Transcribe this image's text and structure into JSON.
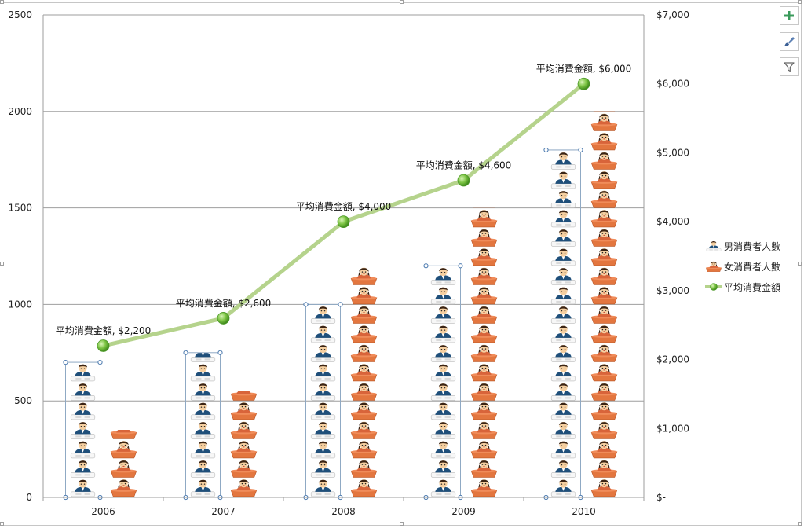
{
  "chart_data": {
    "type": "bar",
    "categories": [
      "2006",
      "2007",
      "2008",
      "2009",
      "2010"
    ],
    "series": [
      {
        "name": "男消費者人數",
        "axis": "left",
        "kind": "pictograph-bar",
        "values": [
          700,
          750,
          1000,
          1200,
          1800
        ]
      },
      {
        "name": "女消費者人數",
        "axis": "left",
        "kind": "pictograph-bar",
        "values": [
          350,
          550,
          1200,
          1500,
          2000
        ]
      },
      {
        "name": "平均消費金額",
        "axis": "right",
        "kind": "line",
        "values": [
          2200,
          2600,
          4000,
          4600,
          6000
        ],
        "data_labels": [
          "平均消費金額, $2,200",
          "平均消費金額, $2,600",
          "平均消費金額, $4,000",
          "平均消費金額, $4,600",
          "平均消費金額, $6,000"
        ]
      }
    ],
    "y_left": {
      "min": 0,
      "max": 2500,
      "ticks": [
        "0",
        "500",
        "1000",
        "1500",
        "2000",
        "2500"
      ]
    },
    "y_right": {
      "min": 0,
      "max": 7000,
      "ticks": [
        "$-",
        "$1,000",
        "$2,000",
        "$3,000",
        "$4,000",
        "$5,000",
        "$6,000",
        "$7,000"
      ]
    },
    "gridlines": true,
    "legend_position": "right",
    "colors": {
      "line": "#b5d38c",
      "marker": "#6fb43a",
      "skin": "#f5cfa0",
      "hair": "#3b2414",
      "shirt_male": "#1f4f7a",
      "shirt_female": "#d8643a",
      "tray": "#e3763f"
    }
  },
  "toolbar": [
    {
      "name": "chart-elements-button",
      "icon": "plus-icon"
    },
    {
      "name": "chart-styles-button",
      "icon": "brush-icon"
    },
    {
      "name": "chart-filters-button",
      "icon": "filter-icon"
    }
  ]
}
